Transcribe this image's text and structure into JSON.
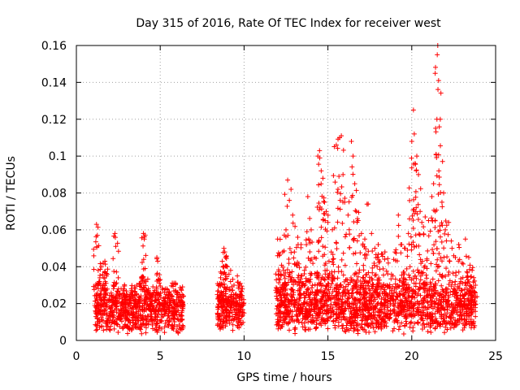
{
  "chart_data": {
    "type": "scatter",
    "title": "Day 315 of 2016, Rate Of TEC Index for receiver west",
    "xlabel": "GPS time / hours",
    "ylabel": "ROTI / TECUs",
    "xlim": [
      0,
      25
    ],
    "ylim": [
      0,
      0.16
    ],
    "grid": true,
    "marker": "+",
    "x_ticks": [
      0,
      5,
      10,
      15,
      20,
      25
    ],
    "x_tick_labels": [
      "0",
      "5",
      "10",
      "15",
      "20",
      "25"
    ],
    "y_ticks": [
      0,
      0.02,
      0.04,
      0.06,
      0.08,
      0.1,
      0.12,
      0.14,
      0.16
    ],
    "y_tick_labels": [
      "0",
      "0.02",
      "0.04",
      "0.06",
      "0.08",
      "0.1",
      "0.12",
      "0.14",
      "0.16"
    ],
    "series": [
      {
        "name": "west",
        "color": "#ff0000",
        "points": [
          [
            1.2,
            0.063
          ],
          [
            1.25,
            0.057
          ],
          [
            1.3,
            0.038
          ],
          [
            1.4,
            0.034
          ],
          [
            1.5,
            0.04
          ],
          [
            1.6,
            0.042
          ],
          [
            1.7,
            0.043
          ],
          [
            1.8,
            0.035
          ],
          [
            2.2,
            0.03
          ],
          [
            2.3,
            0.058
          ],
          [
            2.35,
            0.051
          ],
          [
            2.5,
            0.034
          ],
          [
            2.8,
            0.028
          ],
          [
            3.0,
            0.025
          ],
          [
            3.3,
            0.027
          ],
          [
            3.6,
            0.03
          ],
          [
            3.9,
            0.034
          ],
          [
            4.0,
            0.058
          ],
          [
            4.05,
            0.055
          ],
          [
            4.1,
            0.039
          ],
          [
            4.3,
            0.028
          ],
          [
            4.6,
            0.026
          ],
          [
            4.8,
            0.045
          ],
          [
            4.85,
            0.043
          ],
          [
            5.0,
            0.033
          ],
          [
            5.3,
            0.028
          ],
          [
            5.6,
            0.025
          ],
          [
            5.9,
            0.027
          ],
          [
            6.2,
            0.022
          ],
          [
            8.5,
            0.03
          ],
          [
            8.6,
            0.034
          ],
          [
            8.7,
            0.043
          ],
          [
            8.8,
            0.05
          ],
          [
            8.85,
            0.048
          ],
          [
            8.9,
            0.045
          ],
          [
            9.0,
            0.04
          ],
          [
            9.1,
            0.036
          ],
          [
            9.2,
            0.038
          ],
          [
            9.4,
            0.03
          ],
          [
            9.6,
            0.035
          ],
          [
            9.8,
            0.025
          ],
          [
            12.0,
            0.055
          ],
          [
            12.1,
            0.046
          ],
          [
            12.2,
            0.036
          ],
          [
            12.3,
            0.048
          ],
          [
            12.5,
            0.06
          ],
          [
            12.6,
            0.087
          ],
          [
            12.7,
            0.076
          ],
          [
            12.8,
            0.082
          ],
          [
            12.9,
            0.068
          ],
          [
            13.0,
            0.048
          ],
          [
            13.2,
            0.056
          ],
          [
            13.4,
            0.052
          ],
          [
            13.6,
            0.038
          ],
          [
            13.8,
            0.078
          ],
          [
            14.0,
            0.06
          ],
          [
            14.2,
            0.045
          ],
          [
            14.4,
            0.1
          ],
          [
            14.5,
            0.103
          ],
          [
            14.6,
            0.092
          ],
          [
            14.7,
            0.088
          ],
          [
            14.8,
            0.075
          ],
          [
            14.9,
            0.07
          ],
          [
            15.0,
            0.064
          ],
          [
            15.2,
            0.048
          ],
          [
            15.4,
            0.061
          ],
          [
            15.5,
            0.106
          ],
          [
            15.6,
            0.082
          ],
          [
            15.7,
            0.11
          ],
          [
            15.8,
            0.111
          ],
          [
            15.9,
            0.09
          ],
          [
            16.0,
            0.075
          ],
          [
            16.2,
            0.068
          ],
          [
            16.4,
            0.108
          ],
          [
            16.5,
            0.1
          ],
          [
            16.6,
            0.085
          ],
          [
            16.7,
            0.07
          ],
          [
            16.8,
            0.065
          ],
          [
            17.0,
            0.058
          ],
          [
            17.2,
            0.055
          ],
          [
            17.4,
            0.074
          ],
          [
            17.6,
            0.058
          ],
          [
            17.8,
            0.05
          ],
          [
            18.0,
            0.052
          ],
          [
            18.2,
            0.047
          ],
          [
            18.4,
            0.048
          ],
          [
            18.6,
            0.042
          ],
          [
            19.0,
            0.048
          ],
          [
            19.2,
            0.068
          ],
          [
            19.4,
            0.052
          ],
          [
            19.6,
            0.05
          ],
          [
            19.8,
            0.058
          ],
          [
            20.0,
            0.108
          ],
          [
            20.1,
            0.125
          ],
          [
            20.15,
            0.112
          ],
          [
            20.2,
            0.096
          ],
          [
            20.3,
            0.1
          ],
          [
            20.4,
            0.09
          ],
          [
            20.5,
            0.07
          ],
          [
            20.6,
            0.064
          ],
          [
            20.8,
            0.067
          ],
          [
            21.0,
            0.065
          ],
          [
            21.2,
            0.078
          ],
          [
            21.3,
            0.085
          ],
          [
            21.4,
            0.07
          ],
          [
            21.45,
            0.101
          ],
          [
            21.5,
            0.12
          ],
          [
            21.52,
            0.155
          ],
          [
            21.55,
            0.16
          ],
          [
            21.6,
            0.141
          ],
          [
            21.7,
            0.12
          ],
          [
            21.8,
            0.075
          ],
          [
            21.9,
            0.08
          ],
          [
            22.0,
            0.06
          ],
          [
            22.2,
            0.064
          ],
          [
            22.4,
            0.05
          ],
          [
            22.6,
            0.045
          ],
          [
            22.8,
            0.052
          ],
          [
            23.0,
            0.042
          ],
          [
            23.2,
            0.055
          ],
          [
            23.4,
            0.045
          ],
          [
            23.6,
            0.038
          ],
          [
            23.8,
            0.03
          ]
        ],
        "bands": [
          {
            "x": [
              1.1,
              6.4
            ],
            "floor": [
              0.003,
              0.008
            ],
            "ceil": [
              0.02,
              0.033
            ]
          },
          {
            "x": [
              8.4,
              10.0
            ],
            "floor": [
              0.004,
              0.01
            ],
            "ceil": [
              0.02,
              0.032
            ]
          },
          {
            "x": [
              11.9,
              23.8
            ],
            "floor": [
              0.003,
              0.009
            ],
            "ceil": [
              0.02,
              0.04
            ]
          }
        ]
      }
    ]
  }
}
